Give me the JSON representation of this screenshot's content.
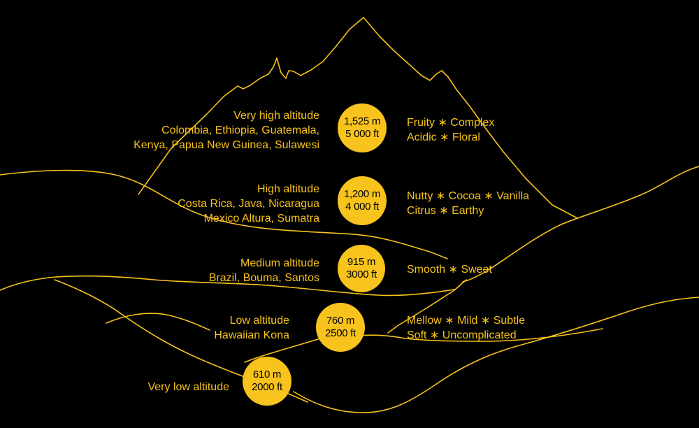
{
  "colors": {
    "background": "#000000",
    "accent": "#f7c31c",
    "badge_text": "#000000"
  },
  "levels": [
    {
      "title": "Very high altitude",
      "regions": [
        "Colombia, Ethiopia, Guatemala,",
        "Kenya, Papua New Guinea, Sulawesi"
      ],
      "meters": "1,525 m",
      "feet": "5 000 ft",
      "flavors": [
        "Fruity ∗ Complex",
        "Acidic ∗ Floral"
      ]
    },
    {
      "title": "High altitude",
      "regions": [
        "Costa Rica, Java, Nicaragua",
        "Mexico Altura,  Sumatra"
      ],
      "meters": "1,200 m",
      "feet": "4 000 ft",
      "flavors": [
        "Nutty ∗ Cocoa ∗ Vanilla",
        "Citrus ∗ Earthy"
      ]
    },
    {
      "title": "Medium altitude",
      "regions": [
        "Brazil, Bouma, Santos"
      ],
      "meters": "915 m",
      "feet": "3000 ft",
      "flavors": [
        "Smooth ∗ Sweet"
      ]
    },
    {
      "title": "Low altitude",
      "regions": [
        "Hawaiian Kona"
      ],
      "meters": "760 m",
      "feet": "2500 ft",
      "flavors": [
        "Mellow ∗ Mild ∗ Subtle",
        "Soft ∗ Uncomplicated"
      ]
    },
    {
      "title": "Very low altitude",
      "regions": [],
      "meters": "610 m",
      "feet": "2000 ft",
      "flavors": []
    }
  ]
}
